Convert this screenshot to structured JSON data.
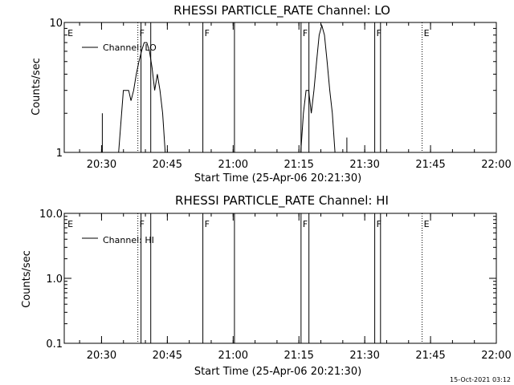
{
  "footer": {
    "timestamp": "15-Oct-2021 03:12"
  },
  "chart_data": [
    {
      "type": "line",
      "title": "RHESSI PARTICLE_RATE Channel: LO",
      "xlabel": "Start Time (25-Apr-06 20:21:30)",
      "ylabel": "Counts/sec",
      "y_scale": "log",
      "ylim": [
        1,
        10
      ],
      "y_ticks": [
        {
          "v": 1,
          "label": "1"
        },
        {
          "v": 10,
          "label": "10"
        }
      ],
      "xlim": [
        20.35833,
        22.0
      ],
      "x_ticks": [
        {
          "v": 20.5,
          "label": "20:30"
        },
        {
          "v": 20.75,
          "label": "20:45"
        },
        {
          "v": 21.0,
          "label": "21:00"
        },
        {
          "v": 21.25,
          "label": "21:15"
        },
        {
          "v": 21.5,
          "label": "21:30"
        },
        {
          "v": 21.75,
          "label": "21:45"
        },
        {
          "v": 22.0,
          "label": "22:00"
        }
      ],
      "legend": "top-left",
      "series": [
        {
          "name": "Channel: LO",
          "segments": [
            [
              [
                20.503,
                2.0
              ],
              [
                20.503,
                1.0
              ]
            ],
            [
              [
                20.565,
                1.0
              ],
              [
                20.583,
                3.0
              ],
              [
                20.603,
                3.0
              ],
              [
                20.612,
                2.5
              ],
              [
                20.622,
                3.0
              ],
              [
                20.632,
                4.0
              ],
              [
                20.642,
                5.0
              ],
              [
                20.652,
                6.0
              ],
              [
                20.662,
                7.0
              ],
              [
                20.672,
                7.0
              ],
              [
                20.682,
                6.0
              ],
              [
                20.692,
                4.5
              ],
              [
                20.702,
                3.0
              ],
              [
                20.712,
                4.0
              ],
              [
                20.722,
                3.0
              ],
              [
                20.732,
                2.0
              ],
              [
                20.742,
                1.0
              ]
            ],
            [
              [
                21.257,
                1.0
              ],
              [
                21.267,
                2.0
              ],
              [
                21.277,
                3.0
              ],
              [
                21.287,
                3.0
              ],
              [
                21.297,
                2.0
              ],
              [
                21.307,
                3.0
              ],
              [
                21.317,
                5.0
              ],
              [
                21.327,
                8.0
              ],
              [
                21.337,
                9.5
              ],
              [
                21.347,
                8.0
              ],
              [
                21.357,
                5.0
              ],
              [
                21.367,
                3.0
              ],
              [
                21.377,
                2.0
              ],
              [
                21.387,
                1.0
              ]
            ],
            [
              [
                21.432,
                1.3
              ],
              [
                21.432,
                1.0
              ]
            ]
          ]
        }
      ],
      "markers": [
        {
          "x": 20.365,
          "label": "E",
          "style": "label-only"
        },
        {
          "x": 20.638,
          "label": "F",
          "style": "dotted"
        },
        {
          "x": 20.65,
          "label": "",
          "style": "solid"
        },
        {
          "x": 20.687,
          "label": "",
          "style": "solid"
        },
        {
          "x": 20.885,
          "label": "F",
          "style": "solid"
        },
        {
          "x": 21.005,
          "label": "",
          "style": "solid"
        },
        {
          "x": 21.258,
          "label": "F",
          "style": "solid"
        },
        {
          "x": 21.288,
          "label": "",
          "style": "solid"
        },
        {
          "x": 21.538,
          "label": "F",
          "style": "solid"
        },
        {
          "x": 21.56,
          "label": "",
          "style": "solid"
        },
        {
          "x": 21.718,
          "label": "E",
          "style": "dotted"
        },
        {
          "x": 22.0,
          "label": "",
          "style": "dotted"
        }
      ]
    },
    {
      "type": "line",
      "title": "RHESSI PARTICLE_RATE Channel: HI",
      "xlabel": "Start Time (25-Apr-06 20:21:30)",
      "ylabel": "Counts/sec",
      "y_scale": "log",
      "ylim": [
        0.1,
        10
      ],
      "y_ticks": [
        {
          "v": 0.1,
          "label": "0.1"
        },
        {
          "v": 1,
          "label": "1.0"
        },
        {
          "v": 10,
          "label": "10.0"
        }
      ],
      "xlim": [
        20.35833,
        22.0
      ],
      "x_ticks": [
        {
          "v": 20.5,
          "label": "20:30"
        },
        {
          "v": 20.75,
          "label": "20:45"
        },
        {
          "v": 21.0,
          "label": "21:00"
        },
        {
          "v": 21.25,
          "label": "21:15"
        },
        {
          "v": 21.5,
          "label": "21:30"
        },
        {
          "v": 21.75,
          "label": "21:45"
        },
        {
          "v": 22.0,
          "label": "22:00"
        }
      ],
      "legend": "top-left",
      "series": [
        {
          "name": "Channel: HI",
          "segments": []
        }
      ],
      "markers": [
        {
          "x": 20.365,
          "label": "E",
          "style": "label-only"
        },
        {
          "x": 20.638,
          "label": "F",
          "style": "dotted"
        },
        {
          "x": 20.65,
          "label": "",
          "style": "solid"
        },
        {
          "x": 20.687,
          "label": "",
          "style": "solid"
        },
        {
          "x": 20.885,
          "label": "F",
          "style": "solid"
        },
        {
          "x": 21.005,
          "label": "",
          "style": "solid"
        },
        {
          "x": 21.258,
          "label": "F",
          "style": "solid"
        },
        {
          "x": 21.288,
          "label": "",
          "style": "solid"
        },
        {
          "x": 21.538,
          "label": "F",
          "style": "solid"
        },
        {
          "x": 21.56,
          "label": "",
          "style": "solid"
        },
        {
          "x": 21.718,
          "label": "E",
          "style": "dotted"
        },
        {
          "x": 22.0,
          "label": "",
          "style": "dotted"
        }
      ]
    }
  ]
}
